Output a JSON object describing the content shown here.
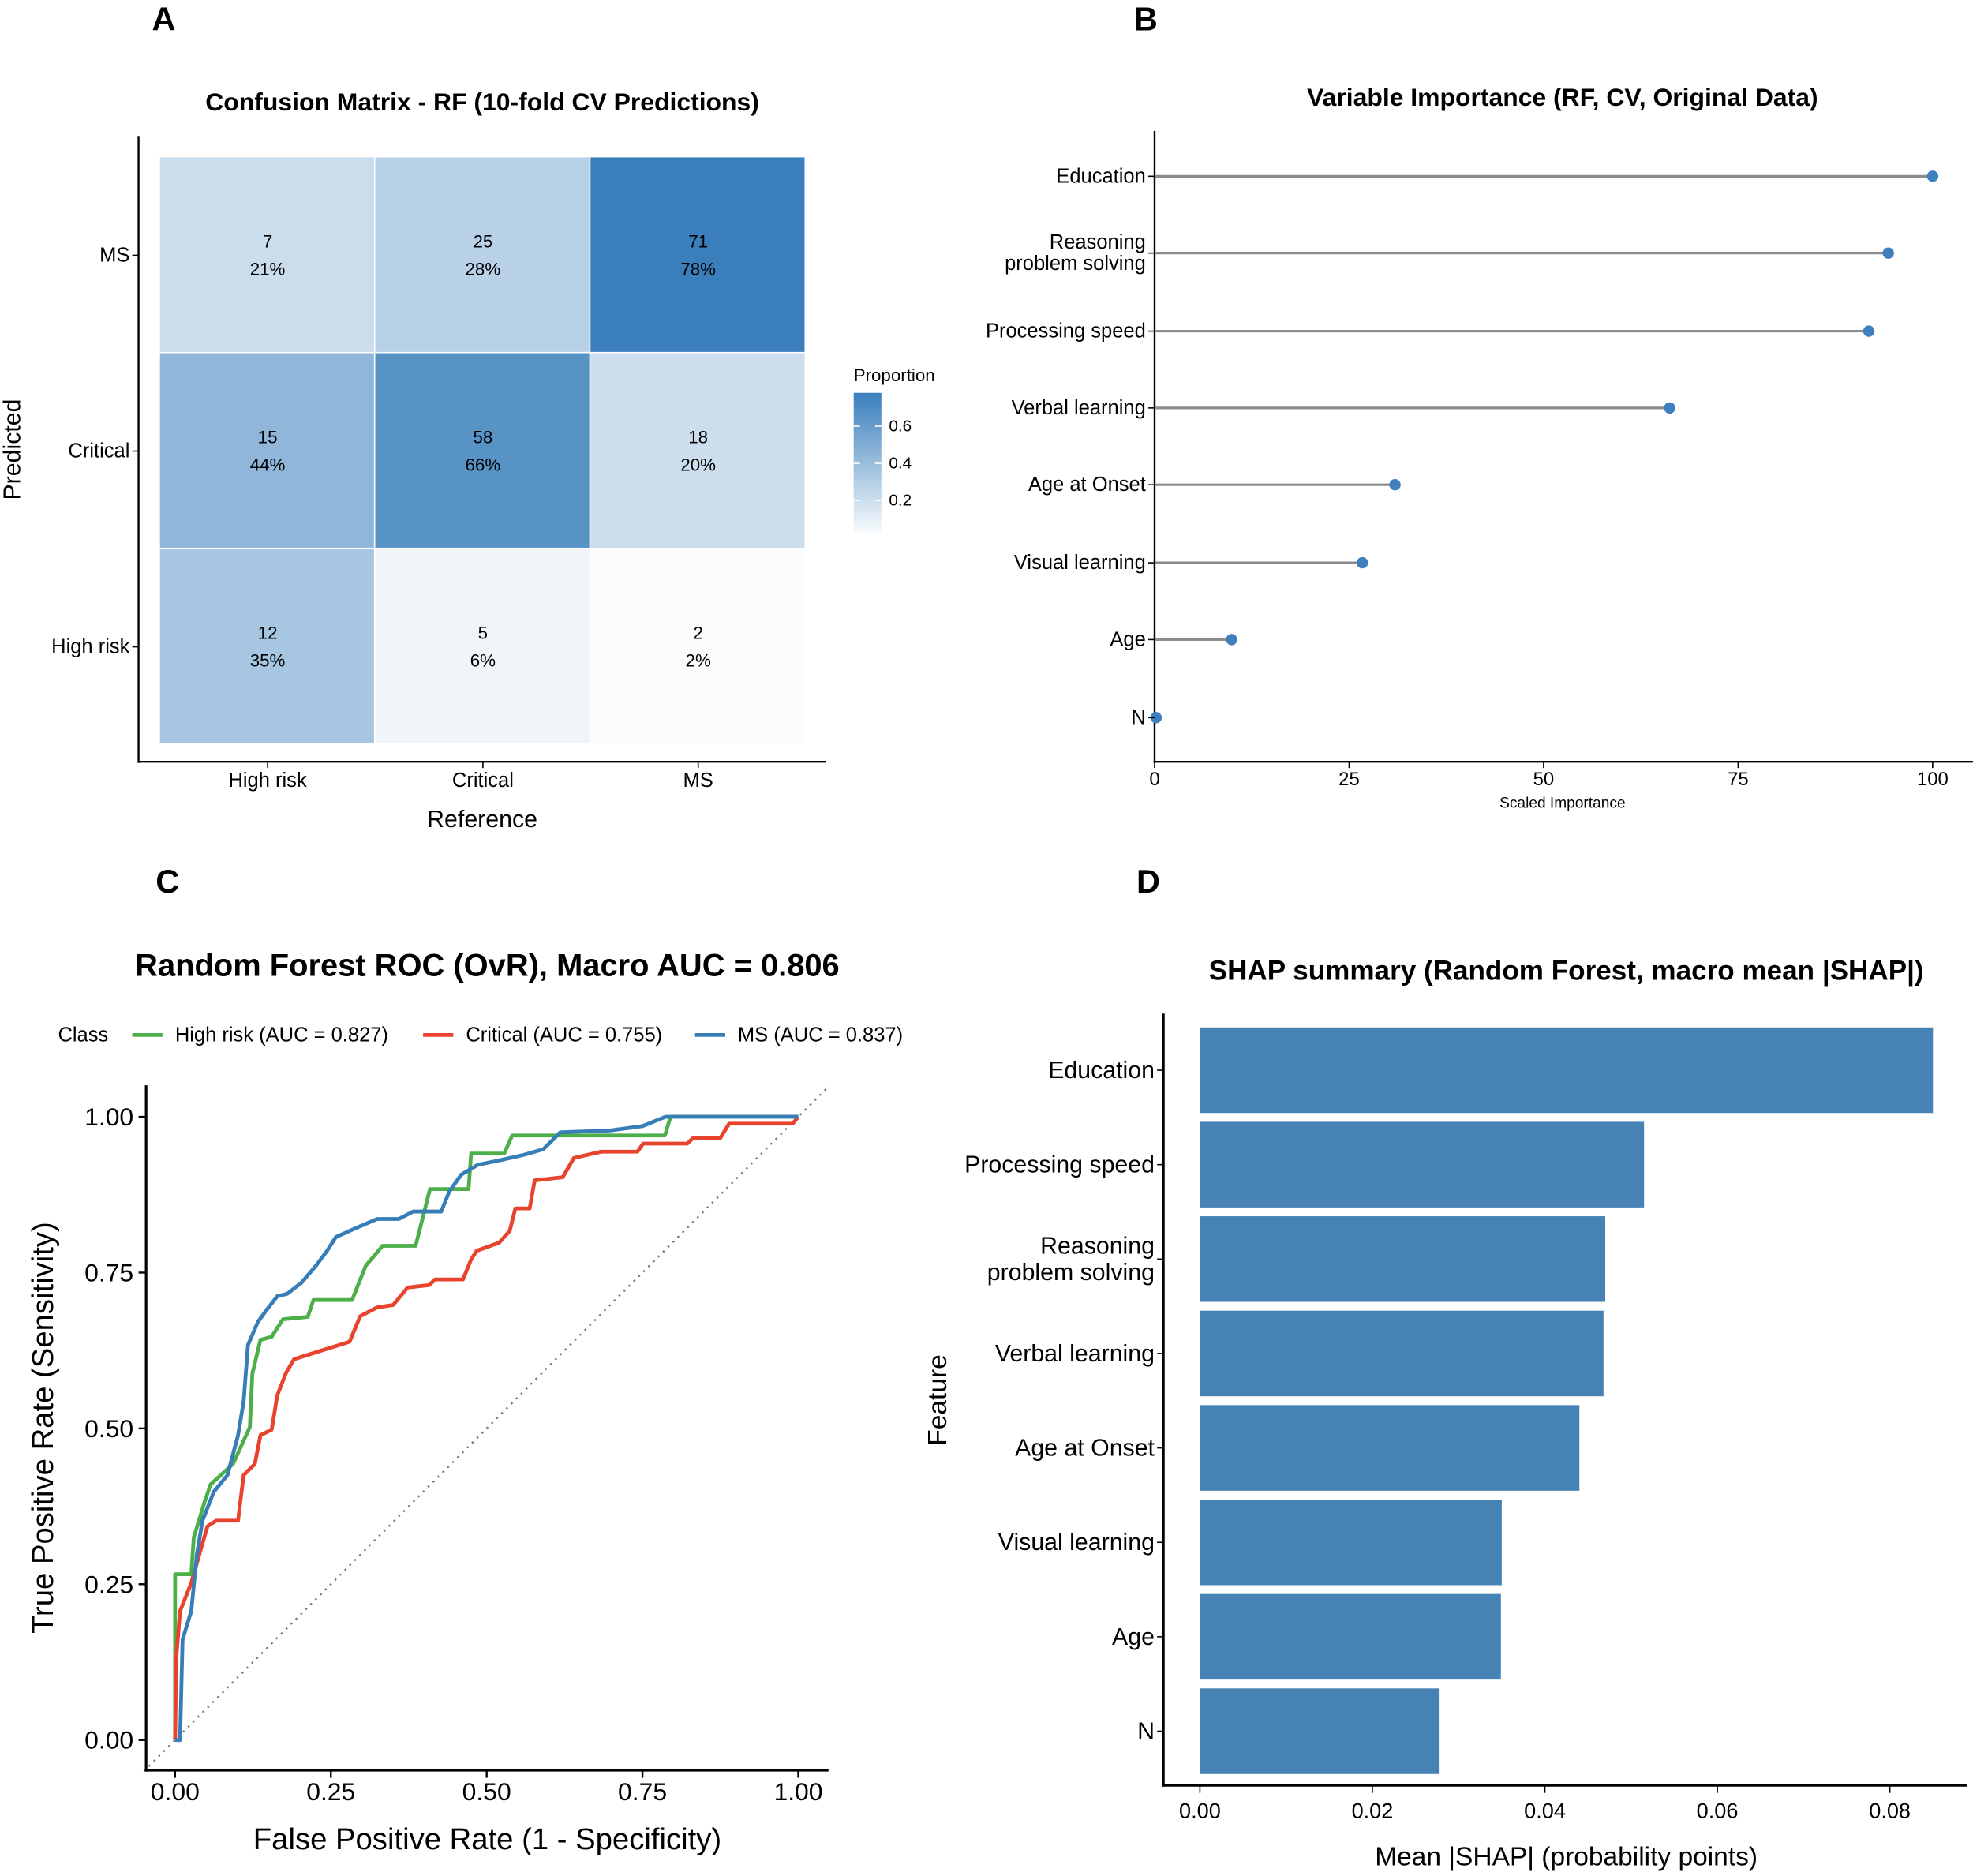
{
  "panel_letters": [
    "A",
    "B",
    "C",
    "D"
  ],
  "chart_data": [
    {
      "type": "heatmap",
      "title": "Confusion Matrix - RF (10-fold CV Predictions)",
      "xlabel": "Reference",
      "ylabel": "Predicted",
      "x_categories": [
        "High risk",
        "Critical",
        "MS"
      ],
      "y_categories": [
        "MS",
        "Critical",
        "High risk"
      ],
      "counts": [
        [
          7,
          25,
          71
        ],
        [
          15,
          58,
          18
        ],
        [
          12,
          5,
          2
        ]
      ],
      "percent_labels": [
        [
          "21%",
          "28%",
          "78%"
        ],
        [
          "44%",
          "66%",
          "20%"
        ],
        [
          "35%",
          "6%",
          "2%"
        ]
      ],
      "proportions": [
        [
          0.21,
          0.28,
          0.78
        ],
        [
          0.44,
          0.66,
          0.2
        ],
        [
          0.35,
          0.06,
          0.02
        ]
      ],
      "legend": {
        "title": "Proportion",
        "ticks": [
          "0.2",
          "0.4",
          "0.6"
        ],
        "range": [
          0.02,
          0.78
        ]
      },
      "colors": {
        "low": "#ffffff",
        "high": "#3a7fbc"
      }
    },
    {
      "type": "scatter",
      "subtype": "lollipop",
      "title": "Variable Importance (RF, CV, Original Data)",
      "xlabel": "Scaled Importance",
      "ylabel": "",
      "categories": [
        "Education",
        "Reasoning\nproblem solving",
        "Processing speed",
        "Verbal learning",
        "Age at Onset",
        "Visual learning",
        "Age",
        "N"
      ],
      "values": [
        100,
        94.3,
        91.8,
        66.2,
        30.9,
        26.7,
        9.9,
        0.2
      ],
      "xlim": [
        0,
        105
      ],
      "xticks": [
        "0",
        "25",
        "50",
        "75",
        "100"
      ],
      "colors": {
        "point": "#3f7fbd",
        "stem": "#8c8c8c"
      }
    },
    {
      "type": "line",
      "title": "Random Forest ROC (OvR), Macro AUC = 0.806",
      "xlabel": "False Positive Rate (1 - Specificity)",
      "ylabel": "True Positive Rate (Sensitivity)",
      "xlim": [
        0,
        1
      ],
      "ylim": [
        0,
        1
      ],
      "xticks": [
        "0.00",
        "0.25",
        "0.50",
        "0.75",
        "1.00"
      ],
      "yticks": [
        "0.00",
        "0.25",
        "0.50",
        "0.75",
        "1.00"
      ],
      "legend": {
        "title": "Class",
        "position": "top"
      },
      "reference_line": "diagonal dotted",
      "series": [
        {
          "name": "High risk (AUC = 0.827)",
          "color": "#4daf4a",
          "points": [
            [
              0,
              0
            ],
            [
              0,
              0.266
            ],
            [
              0.026,
              0.266
            ],
            [
              0.03,
              0.325
            ],
            [
              0.048,
              0.384
            ],
            [
              0.057,
              0.41
            ],
            [
              0.093,
              0.443
            ],
            [
              0.12,
              0.502
            ],
            [
              0.124,
              0.588
            ],
            [
              0.137,
              0.642
            ],
            [
              0.155,
              0.647
            ],
            [
              0.173,
              0.675
            ],
            [
              0.213,
              0.679
            ],
            [
              0.222,
              0.706
            ],
            [
              0.284,
              0.706
            ],
            [
              0.306,
              0.761
            ],
            [
              0.333,
              0.793
            ],
            [
              0.386,
              0.793
            ],
            [
              0.409,
              0.884
            ],
            [
              0.471,
              0.884
            ],
            [
              0.475,
              0.941
            ],
            [
              0.528,
              0.941
            ],
            [
              0.541,
              0.97
            ],
            [
              0.786,
              0.97
            ],
            [
              0.795,
              1.0
            ],
            [
              1,
              1
            ]
          ]
        },
        {
          "name": "Critical (AUC = 0.755)",
          "color": "#e8432d",
          "points": [
            [
              0,
              0
            ],
            [
              0.002,
              0.134
            ],
            [
              0.008,
              0.207
            ],
            [
              0.026,
              0.252
            ],
            [
              0.039,
              0.298
            ],
            [
              0.052,
              0.343
            ],
            [
              0.066,
              0.352
            ],
            [
              0.101,
              0.352
            ],
            [
              0.11,
              0.425
            ],
            [
              0.128,
              0.443
            ],
            [
              0.137,
              0.489
            ],
            [
              0.155,
              0.498
            ],
            [
              0.164,
              0.553
            ],
            [
              0.178,
              0.589
            ],
            [
              0.191,
              0.611
            ],
            [
              0.235,
              0.625
            ],
            [
              0.28,
              0.639
            ],
            [
              0.297,
              0.68
            ],
            [
              0.324,
              0.694
            ],
            [
              0.35,
              0.698
            ],
            [
              0.373,
              0.726
            ],
            [
              0.408,
              0.73
            ],
            [
              0.417,
              0.739
            ],
            [
              0.462,
              0.739
            ],
            [
              0.475,
              0.771
            ],
            [
              0.484,
              0.785
            ],
            [
              0.52,
              0.798
            ],
            [
              0.537,
              0.817
            ],
            [
              0.546,
              0.853
            ],
            [
              0.569,
              0.853
            ],
            [
              0.577,
              0.898
            ],
            [
              0.622,
              0.903
            ],
            [
              0.64,
              0.934
            ],
            [
              0.684,
              0.944
            ],
            [
              0.742,
              0.944
            ],
            [
              0.751,
              0.957
            ],
            [
              0.822,
              0.957
            ],
            [
              0.831,
              0.966
            ],
            [
              0.875,
              0.966
            ],
            [
              0.889,
              0.989
            ],
            [
              0.991,
              0.989
            ],
            [
              1,
              1
            ]
          ]
        },
        {
          "name": "MS (AUC = 0.837)",
          "color": "#377eb8",
          "points": [
            [
              0,
              0
            ],
            [
              0.008,
              0
            ],
            [
              0.012,
              0.161
            ],
            [
              0.026,
              0.207
            ],
            [
              0.035,
              0.298
            ],
            [
              0.044,
              0.352
            ],
            [
              0.062,
              0.398
            ],
            [
              0.084,
              0.425
            ],
            [
              0.101,
              0.489
            ],
            [
              0.11,
              0.543
            ],
            [
              0.117,
              0.634
            ],
            [
              0.133,
              0.671
            ],
            [
              0.146,
              0.689
            ],
            [
              0.164,
              0.712
            ],
            [
              0.18,
              0.716
            ],
            [
              0.203,
              0.734
            ],
            [
              0.226,
              0.761
            ],
            [
              0.244,
              0.785
            ],
            [
              0.258,
              0.807
            ],
            [
              0.289,
              0.821
            ],
            [
              0.324,
              0.836
            ],
            [
              0.359,
              0.836
            ],
            [
              0.382,
              0.848
            ],
            [
              0.427,
              0.848
            ],
            [
              0.44,
              0.88
            ],
            [
              0.459,
              0.907
            ],
            [
              0.486,
              0.923
            ],
            [
              0.52,
              0.93
            ],
            [
              0.56,
              0.939
            ],
            [
              0.591,
              0.948
            ],
            [
              0.618,
              0.975
            ],
            [
              0.698,
              0.978
            ],
            [
              0.75,
              0.985
            ],
            [
              0.787,
              1.0
            ],
            [
              1,
              1
            ]
          ]
        }
      ]
    },
    {
      "type": "bar",
      "orientation": "horizontal",
      "title": "SHAP summary (Random Forest, macro mean |SHAP|)",
      "xlabel": "Mean |SHAP| (probability points)",
      "ylabel": "Feature",
      "categories": [
        "Education",
        "Processing speed",
        "Reasoning\nproblem solving",
        "Verbal learning",
        "Age at Onset",
        "Visual learning",
        "Age",
        "N"
      ],
      "values": [
        0.085,
        0.0515,
        0.047,
        0.0468,
        0.044,
        0.035,
        0.0349,
        0.0277
      ],
      "xlim": [
        -0.004,
        0.0885
      ],
      "xticks": [
        "0.00",
        "0.02",
        "0.04",
        "0.06",
        "0.08"
      ],
      "colors": {
        "bar": "#4682b4"
      }
    }
  ]
}
